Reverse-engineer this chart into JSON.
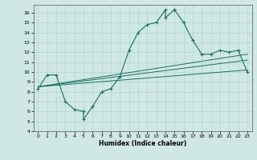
{
  "xlabel": "Humidex (Indice chaleur)",
  "ylabel": "",
  "bg_color": "#cfe8e4",
  "line_color": "#1a7060",
  "grid_color": "#b0d8d0",
  "xlim": [
    -0.5,
    23.5
  ],
  "ylim": [
    4,
    16.8
  ],
  "xticks": [
    0,
    1,
    2,
    3,
    4,
    5,
    6,
    7,
    8,
    9,
    10,
    11,
    12,
    13,
    14,
    15,
    16,
    17,
    18,
    19,
    20,
    21,
    22,
    23
  ],
  "yticks": [
    4,
    5,
    6,
    7,
    8,
    9,
    10,
    11,
    12,
    13,
    14,
    15,
    16
  ],
  "line1_x": [
    0,
    1,
    2,
    3,
    4,
    5,
    5,
    6,
    7,
    8,
    9,
    10,
    11,
    12,
    13,
    14,
    14,
    15,
    15,
    16,
    17,
    18,
    19,
    20,
    21,
    22,
    23
  ],
  "line1_y": [
    8.3,
    9.7,
    9.7,
    7.0,
    6.2,
    6.0,
    5.2,
    6.5,
    8.0,
    8.3,
    9.5,
    12.2,
    14.0,
    14.8,
    15.0,
    16.3,
    15.5,
    16.3,
    16.3,
    15.0,
    13.2,
    11.8,
    11.8,
    12.2,
    12.0,
    12.2,
    10.0
  ],
  "line2_x": [
    0,
    23
  ],
  "line2_y": [
    8.5,
    11.8
  ],
  "line3_x": [
    0,
    23
  ],
  "line3_y": [
    8.5,
    11.2
  ],
  "line4_x": [
    0,
    23
  ],
  "line4_y": [
    8.5,
    10.2
  ]
}
